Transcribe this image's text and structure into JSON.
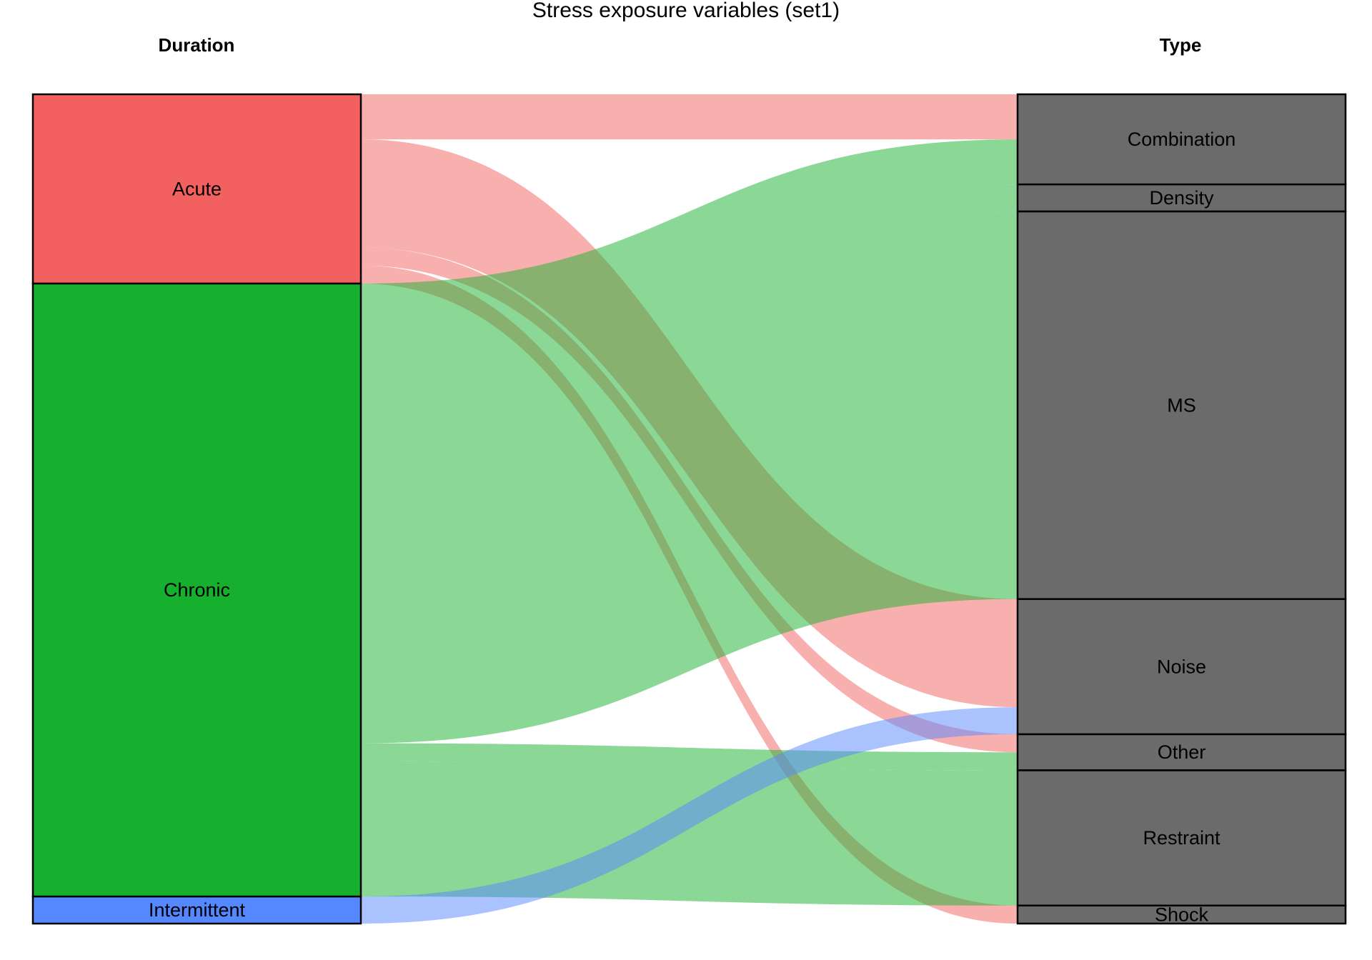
{
  "chart_data": {
    "type": "alluvial",
    "title": "Stress exposure  variables (set1)",
    "axes": [
      "Duration",
      "Type"
    ],
    "left_nodes": [
      {
        "name": "Acute",
        "color": "#F2615F"
      },
      {
        "name": "Chronic",
        "color": "#17B02E"
      },
      {
        "name": "Intermittent",
        "color": "#5588FF"
      }
    ],
    "right_nodes": [
      {
        "name": "Combination",
        "color": "#6B6B6B"
      },
      {
        "name": "Density",
        "color": "#6B6B6B"
      },
      {
        "name": "MS",
        "color": "#6B6B6B"
      },
      {
        "name": "Noise",
        "color": "#6B6B6B"
      },
      {
        "name": "Other",
        "color": "#6B6B6B"
      },
      {
        "name": "Restraint",
        "color": "#6B6B6B"
      },
      {
        "name": "Shock",
        "color": "#6B6B6B"
      }
    ],
    "flows": [
      {
        "from": "Acute",
        "to": "Combination",
        "value": 5
      },
      {
        "from": "Acute",
        "to": "Noise",
        "value": 12
      },
      {
        "from": "Acute",
        "to": "Other",
        "value": 2
      },
      {
        "from": "Acute",
        "to": "Shock",
        "value": 2
      },
      {
        "from": "Chronic",
        "to": "Combination",
        "value": 5
      },
      {
        "from": "Chronic",
        "to": "Density",
        "value": 3
      },
      {
        "from": "Chronic",
        "to": "MS",
        "value": 43
      },
      {
        "from": "Chronic",
        "to": "Other",
        "value": 2
      },
      {
        "from": "Chronic",
        "to": "Restraint",
        "value": 15
      },
      {
        "from": "Intermittent",
        "to": "Noise",
        "value": 3
      }
    ],
    "flow_opacity": 0.5
  }
}
